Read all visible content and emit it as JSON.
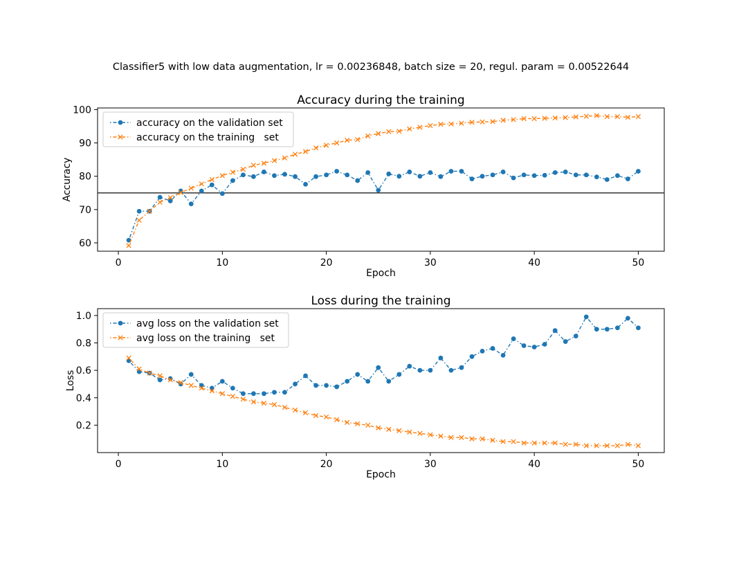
{
  "suptitle": "Classifier5 with low data augmentation, lr = 0.00236848, batch size = 20, regul. param = 0.00522644",
  "colors": {
    "validation": "#1f77b4",
    "training": "#ff7f0e",
    "hline": "#333333"
  },
  "chart_data": [
    {
      "type": "line",
      "title": "Accuracy during the training",
      "xlabel": "Epoch",
      "ylabel": "Accuracy",
      "xlim": [
        -2,
        52.5
      ],
      "ylim": [
        57.5,
        100.5
      ],
      "xticks": [
        0,
        10,
        20,
        30,
        40,
        50
      ],
      "yticks": [
        60,
        70,
        80,
        90,
        100
      ],
      "grid": false,
      "legend_loc": "upper left",
      "hline": 75,
      "x": [
        1,
        2,
        3,
        4,
        5,
        6,
        7,
        8,
        9,
        10,
        11,
        12,
        13,
        14,
        15,
        16,
        17,
        18,
        19,
        20,
        21,
        22,
        23,
        24,
        25,
        26,
        27,
        28,
        29,
        30,
        31,
        32,
        33,
        34,
        35,
        36,
        37,
        38,
        39,
        40,
        41,
        42,
        43,
        44,
        45,
        46,
        47,
        48,
        49,
        50
      ],
      "series": [
        {
          "name": "accuracy on the validation set",
          "marker": "o",
          "color": "#1f77b4",
          "values": [
            60.8,
            69.5,
            69.5,
            73.7,
            72.6,
            75.6,
            71.7,
            75.6,
            77.4,
            74.8,
            78.7,
            80.4,
            79.9,
            81.3,
            80.2,
            80.6,
            79.9,
            77.6,
            79.9,
            80.4,
            81.5,
            80.4,
            78.7,
            81.1,
            75.8,
            80.7,
            80.0,
            81.3,
            80.0,
            81.1,
            79.9,
            81.5,
            81.5,
            79.2,
            80.0,
            80.4,
            81.3,
            79.5,
            80.4,
            80.2,
            80.3,
            81.1,
            81.3,
            80.4,
            80.4,
            79.8,
            79.0,
            80.2,
            79.2,
            81.5
          ]
        },
        {
          "name": "accuracy on the training   set",
          "marker": "x",
          "color": "#ff7f0e",
          "values": [
            59.2,
            66.8,
            69.5,
            72.2,
            73.6,
            75.1,
            76.4,
            77.7,
            79.0,
            80.2,
            81.2,
            82.1,
            83.3,
            83.9,
            84.7,
            85.5,
            86.6,
            87.4,
            88.5,
            89.3,
            90.0,
            90.8,
            91.0,
            92.1,
            92.8,
            93.4,
            93.5,
            94.2,
            94.7,
            95.2,
            95.6,
            95.7,
            95.9,
            96.2,
            96.3,
            96.4,
            96.8,
            97.0,
            97.3,
            97.3,
            97.4,
            97.5,
            97.6,
            97.8,
            98.0,
            98.2,
            97.9,
            97.9,
            97.7,
            97.9
          ]
        }
      ]
    },
    {
      "type": "line",
      "title": "Loss during the training",
      "xlabel": "Epoch",
      "ylabel": "Loss",
      "xlim": [
        -2,
        52.5
      ],
      "ylim": [
        0.0,
        1.05
      ],
      "xticks": [
        0,
        10,
        20,
        30,
        40,
        50
      ],
      "yticks": [
        0.2,
        0.4,
        0.6,
        0.8,
        1.0
      ],
      "grid": false,
      "legend_loc": "upper left",
      "x": [
        1,
        2,
        3,
        4,
        5,
        6,
        7,
        8,
        9,
        10,
        11,
        12,
        13,
        14,
        15,
        16,
        17,
        18,
        19,
        20,
        21,
        22,
        23,
        24,
        25,
        26,
        27,
        28,
        29,
        30,
        31,
        32,
        33,
        34,
        35,
        36,
        37,
        38,
        39,
        40,
        41,
        42,
        43,
        44,
        45,
        46,
        47,
        48,
        49,
        50
      ],
      "series": [
        {
          "name": "avg loss on the validation set",
          "marker": "o",
          "color": "#1f77b4",
          "values": [
            0.67,
            0.59,
            0.58,
            0.53,
            0.54,
            0.5,
            0.57,
            0.49,
            0.47,
            0.52,
            0.47,
            0.43,
            0.43,
            0.43,
            0.44,
            0.44,
            0.5,
            0.56,
            0.49,
            0.49,
            0.48,
            0.52,
            0.57,
            0.52,
            0.62,
            0.52,
            0.57,
            0.63,
            0.6,
            0.6,
            0.69,
            0.6,
            0.62,
            0.7,
            0.74,
            0.76,
            0.71,
            0.83,
            0.78,
            0.77,
            0.79,
            0.89,
            0.81,
            0.85,
            0.99,
            0.9,
            0.9,
            0.91,
            0.98,
            0.91
          ]
        },
        {
          "name": "avg loss on the training   set",
          "marker": "x",
          "color": "#ff7f0e",
          "values": [
            0.69,
            0.61,
            0.58,
            0.56,
            0.53,
            0.51,
            0.49,
            0.47,
            0.45,
            0.43,
            0.41,
            0.39,
            0.37,
            0.36,
            0.35,
            0.33,
            0.31,
            0.29,
            0.27,
            0.26,
            0.24,
            0.22,
            0.21,
            0.2,
            0.18,
            0.17,
            0.16,
            0.15,
            0.14,
            0.13,
            0.12,
            0.11,
            0.11,
            0.1,
            0.1,
            0.09,
            0.08,
            0.08,
            0.07,
            0.07,
            0.07,
            0.07,
            0.06,
            0.06,
            0.05,
            0.05,
            0.05,
            0.05,
            0.06,
            0.05
          ]
        }
      ]
    }
  ]
}
